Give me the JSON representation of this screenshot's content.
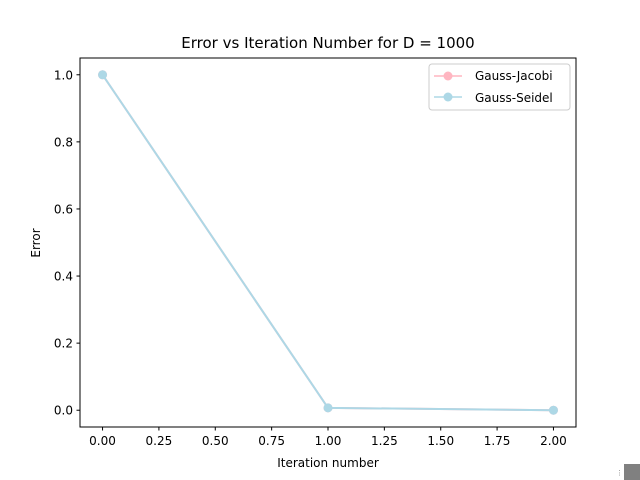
{
  "chart_data": {
    "type": "line",
    "title": "Error vs Iteration Number for D = 1000",
    "xlabel": "Iteration number",
    "ylabel": "Error",
    "xlim": [
      -0.1,
      2.1
    ],
    "ylim": [
      -0.05,
      1.05
    ],
    "xticks": [
      0.0,
      0.25,
      0.5,
      0.75,
      1.0,
      1.25,
      1.5,
      1.75,
      2.0
    ],
    "xtick_labels": [
      "0.00",
      "0.25",
      "0.50",
      "0.75",
      "1.00",
      "1.25",
      "1.50",
      "1.75",
      "2.00"
    ],
    "yticks": [
      0.0,
      0.2,
      0.4,
      0.6,
      0.8,
      1.0
    ],
    "ytick_labels": [
      "0.0",
      "0.2",
      "0.4",
      "0.6",
      "0.8",
      "1.0"
    ],
    "grid": false,
    "legend_position": "top-right",
    "series": [
      {
        "name": "Gauss-Jacobi",
        "color": "#ffb6c1",
        "x": [
          0,
          1,
          2
        ],
        "y": [
          1.0,
          0.007,
          0.0
        ]
      },
      {
        "name": "Gauss-Seidel",
        "color": "#add8e6",
        "x": [
          0,
          1,
          2
        ],
        "y": [
          1.0,
          0.007,
          0.0
        ]
      }
    ]
  }
}
